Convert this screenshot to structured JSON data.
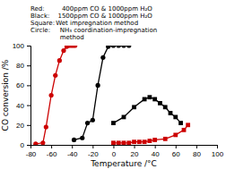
{
  "chart_data": {
    "type": "line",
    "xlabel": "Temperature /°C",
    "ylabel": "CO conversion /%",
    "xlim": [
      -80,
      100
    ],
    "ylim": [
      0,
      100
    ],
    "xticks": [
      -80,
      -60,
      -40,
      -20,
      0,
      20,
      40,
      60,
      80,
      100
    ],
    "yticks": [
      0,
      20,
      40,
      60,
      80,
      100
    ],
    "grid": false,
    "series": [
      {
        "color": "#cc0000",
        "marker": "circle",
        "x": [
          -75,
          -68,
          -65,
          -60,
          -56,
          -52,
          -48,
          -45,
          -43,
          -41,
          -39,
          -37
        ],
        "values": [
          1,
          2,
          18,
          50,
          70,
          85,
          95,
          99,
          100,
          100,
          100,
          100
        ]
      },
      {
        "color": "#000000",
        "marker": "circle",
        "x": [
          -38,
          -30,
          -25,
          -20,
          -15,
          -10,
          -5,
          0,
          5,
          10,
          15
        ],
        "values": [
          5,
          7,
          22,
          25,
          60,
          88,
          99,
          100,
          100,
          100,
          100
        ]
      },
      {
        "color": "#cc0000",
        "marker": "square",
        "x": [
          0,
          5,
          10,
          15,
          20,
          25,
          30,
          35,
          40,
          50,
          60,
          68,
          72
        ],
        "values": [
          2,
          2,
          2,
          2,
          3,
          3,
          3,
          4,
          5,
          6,
          10,
          15,
          20
        ]
      },
      {
        "color": "#000000",
        "marker": "square",
        "x": [
          0,
          10,
          20,
          30,
          35,
          40,
          45,
          50,
          55,
          60,
          65
        ],
        "values": [
          22,
          28,
          38,
          46,
          48,
          46,
          42,
          38,
          32,
          28,
          22
        ]
      }
    ],
    "annotations": [
      {
        "label": "Red:",
        "text": "    400ppm CO & 1000ppm H₂O"
      },
      {
        "label": "Black:",
        "text": "  1500ppm CO & 1000ppm H₂O"
      },
      {
        "label": "Square:",
        "text": " Wet impregnation method"
      },
      {
        "label": "Circle:",
        "text": "   NH₃ coordination-impregnation"
      },
      {
        "text": "   method"
      }
    ]
  }
}
